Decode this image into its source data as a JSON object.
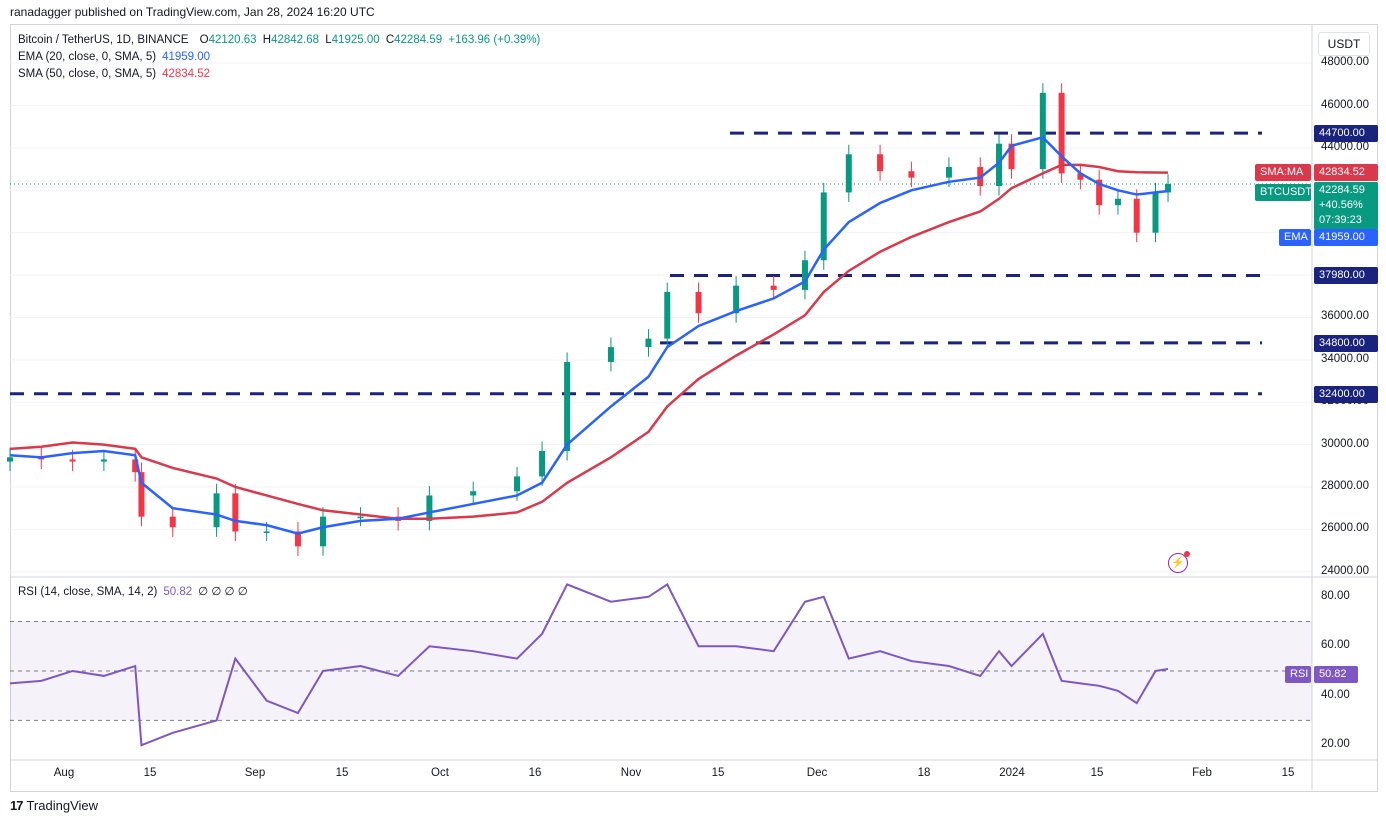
{
  "header": {
    "publisher_line": "ranadagger published on TradingView.com, Jan 28, 2024 16:20 UTC"
  },
  "legend": {
    "symbol": "Bitcoin / TetherUS, 1D, BINANCE",
    "open_label": "O",
    "open": "42120.63",
    "high_label": "H",
    "high": "42842.68",
    "low_label": "L",
    "low": "41925.00",
    "close_label": "C",
    "close": "42284.59",
    "change": "+163.96 (+0.39%)",
    "ema_label": "EMA (20, close, 0, SMA, 5)",
    "ema_value": "41959.00",
    "sma_label": "SMA (50, close, 0, SMA, 5)",
    "sma_value": "42834.52",
    "rsi_label": "RSI (14, close, SMA, 14, 2)",
    "rsi_value": "50.82",
    "rsi_extra": "∅ ∅ ∅ ∅"
  },
  "price_axis": {
    "currency": "USDT",
    "ticks": [
      "48000.00",
      "46000.00",
      "44000.00",
      "36000.00",
      "34000.00",
      "32000.00",
      "30000.00",
      "28000.00",
      "26000.00",
      "24000.00"
    ],
    "levels": [
      "44700.00",
      "37980.00",
      "34800.00",
      "32400.00"
    ],
    "current": {
      "label": "BTCUSDT",
      "value": "42284.59",
      "change": "+40.56%",
      "countdown": "07:39:23"
    },
    "sma_tag": {
      "label": "SMA:MA",
      "value": "42834.52"
    },
    "ema_tag": {
      "label": "EMA",
      "value": "41959.00"
    }
  },
  "rsi_axis": {
    "ticks": [
      "80.00",
      "60.00",
      "40.00",
      "20.00"
    ],
    "tag_label": "RSI",
    "tag_value": "50.82"
  },
  "time_axis": {
    "labels": [
      "Aug",
      "15",
      "Sep",
      "15",
      "Oct",
      "16",
      "Nov",
      "15",
      "Dec",
      "18",
      "2024",
      "15",
      "Feb",
      "15"
    ]
  },
  "branding": {
    "name": "TradingView"
  },
  "colors": {
    "up": "#089981",
    "down": "#f23645",
    "ema": "#2962ff",
    "sma": "#d9394b",
    "rsi": "#7e57c2",
    "level": "#1a237e"
  },
  "chart_data": [
    {
      "type": "candlestick",
      "title": "Bitcoin / TetherUS, 1D, BINANCE",
      "x_range": [
        "2024-07-27",
        "2024-02-20"
      ],
      "ylim": [
        23800,
        49800
      ],
      "horizontal_levels": [
        44700,
        37980,
        34800,
        32400
      ],
      "x": [
        "Jul 27",
        "Aug 1",
        "Aug 6",
        "Aug 11",
        "Aug 16",
        "Aug 17",
        "Aug 22",
        "Aug 29",
        "Sep 1",
        "Sep 6",
        "Sep 11",
        "Sep 15",
        "Sep 21",
        "Sep 27",
        "Oct 2",
        "Oct 9",
        "Oct 16",
        "Oct 20",
        "Oct 24",
        "Oct 31",
        "Nov 6",
        "Nov 9",
        "Nov 14",
        "Nov 20",
        "Nov 26",
        "Dec 1",
        "Dec 4",
        "Dec 8",
        "Dec 13",
        "Dec 18",
        "Dec 24",
        "Dec 29",
        "Jan 1",
        "Jan 3",
        "Jan 8",
        "Jan 11",
        "Jan 14",
        "Jan 17",
        "Jan 20",
        "Jan 23",
        "Jan 26",
        "Jan 28"
      ],
      "series": [
        {
          "name": "close",
          "values": [
            29400,
            29300,
            29200,
            29300,
            28700,
            26600,
            26100,
            27700,
            25900,
            25900,
            25200,
            26600,
            26600,
            26400,
            27600,
            27800,
            28500,
            29700,
            33900,
            34600,
            35000,
            37200,
            36200,
            37500,
            37300,
            38700,
            41900,
            43700,
            42900,
            42600,
            43100,
            42200,
            44200,
            43000,
            46600,
            42800,
            42500,
            41300,
            41600,
            40000,
            41900,
            42300
          ]
        },
        {
          "name": "EMA 20",
          "values": [
            29500,
            29400,
            29600,
            29700,
            29500,
            28200,
            27000,
            26700,
            26400,
            26200,
            25800,
            26100,
            26400,
            26500,
            26800,
            27200,
            27600,
            28200,
            30000,
            31800,
            33200,
            34600,
            35600,
            36300,
            36900,
            37700,
            39200,
            40500,
            41400,
            42000,
            42400,
            42600,
            43300,
            44100,
            44500,
            43600,
            42800,
            42300,
            42000,
            41800,
            41900,
            41959
          ]
        },
        {
          "name": "SMA 50",
          "values": [
            29800,
            29900,
            30100,
            30000,
            29800,
            29400,
            28900,
            28400,
            28000,
            27600,
            27200,
            26900,
            26700,
            26500,
            26500,
            26600,
            26800,
            27300,
            28200,
            29400,
            30600,
            31800,
            33100,
            34200,
            35200,
            36100,
            37200,
            38200,
            39100,
            39800,
            40500,
            41000,
            41600,
            42100,
            42800,
            43200,
            43200,
            43100,
            42900,
            42850,
            42840,
            42834
          ]
        }
      ]
    },
    {
      "type": "line",
      "title": "RSI (14, close, SMA, 14, 2)",
      "ylim": [
        14,
        88
      ],
      "bands": [
        30,
        70
      ],
      "x": [
        "Jul 27",
        "Aug 1",
        "Aug 6",
        "Aug 11",
        "Aug 16",
        "Aug 17",
        "Aug 22",
        "Aug 29",
        "Sep 1",
        "Sep 6",
        "Sep 11",
        "Sep 15",
        "Sep 21",
        "Sep 27",
        "Oct 2",
        "Oct 9",
        "Oct 16",
        "Oct 20",
        "Oct 24",
        "Oct 31",
        "Nov 6",
        "Nov 9",
        "Nov 14",
        "Nov 20",
        "Nov 26",
        "Dec 1",
        "Dec 4",
        "Dec 8",
        "Dec 13",
        "Dec 18",
        "Dec 24",
        "Dec 29",
        "Jan 1",
        "Jan 3",
        "Jan 8",
        "Jan 11",
        "Jan 14",
        "Jan 17",
        "Jan 20",
        "Jan 23",
        "Jan 26",
        "Jan 28"
      ],
      "series": [
        {
          "name": "RSI",
          "values": [
            45,
            46,
            50,
            48,
            52,
            20,
            25,
            30,
            55,
            38,
            33,
            50,
            52,
            48,
            60,
            58,
            55,
            65,
            85,
            78,
            80,
            85,
            60,
            60,
            58,
            78,
            80,
            55,
            58,
            54,
            52,
            48,
            58,
            52,
            65,
            46,
            45,
            44,
            42,
            37,
            50,
            50.82
          ]
        }
      ]
    }
  ]
}
